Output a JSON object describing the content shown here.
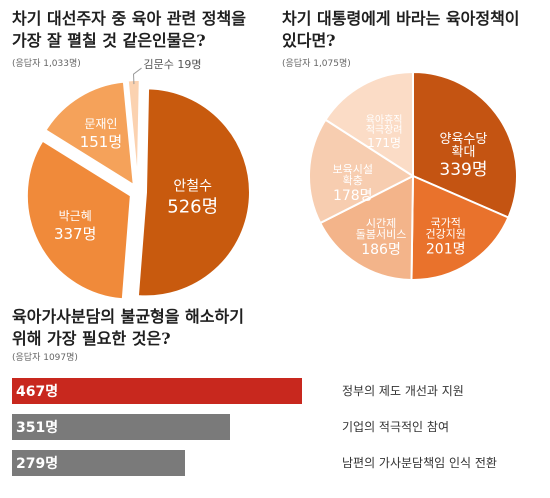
{
  "colors": {
    "q1_dark": "#c85a0e",
    "q1_mid": "#f08a3a",
    "q1_light": "#f5a25a",
    "q1_pale": "#fbd2b0",
    "q2_dark": "#c45412",
    "q2_mid": "#e9722c",
    "q2_light": "#f3b48a",
    "q2_pale": "#f7cdb0",
    "q2_palest": "#fbdcc6",
    "bar_red": "#c8281e",
    "bar_gray": "#7a7a7a"
  },
  "q1": {
    "title_line1": "차기 대선주자 중 육아 관련 정책을",
    "title_line2": "가장 잘 펼칠 것 같은인물은?",
    "sub": "(응답자 1,033명)"
  },
  "q2": {
    "title_line1": "차기 대통령에게 바라는 육아정책이",
    "title_line2": "있다면?",
    "sub": "(응답자 1,075명)"
  },
  "q3": {
    "title_line1": "육아가사분담의 불균형을 해소하기",
    "title_line2": "위해 가장 필요한 것은?",
    "sub": "(응답자 1097명)"
  },
  "chart_data": [
    {
      "type": "pie",
      "title": "차기 대선주자 중 육아 관련 정책을 가장 잘 펼칠 것 같은인물은?",
      "labels": [
        "안철수",
        "박근혜",
        "문재인",
        "김문수"
      ],
      "values": [
        526,
        337,
        151,
        19
      ],
      "value_labels": [
        "526명",
        "337명",
        "151명",
        "19명"
      ],
      "colors": [
        "#c85a0e",
        "#f08a3a",
        "#f5a25a",
        "#fbd2b0"
      ]
    },
    {
      "type": "pie",
      "title": "차기 대통령에게 바라는 육아정책이 있다면?",
      "labels": [
        "양육수당 확대",
        "국가적 건강지원",
        "시간제 돌봄서비스",
        "보육시설 확충",
        "육아휴직 적극장려"
      ],
      "label_lines": [
        [
          "양육수당",
          "확대"
        ],
        [
          "국가적",
          "건강지원"
        ],
        [
          "시간제",
          "돌봄서비스"
        ],
        [
          "보육시설",
          "확충"
        ],
        [
          "육아휴직",
          "적극장려"
        ]
      ],
      "values": [
        339,
        201,
        186,
        178,
        171
      ],
      "value_labels": [
        "339명",
        "201명",
        "186명",
        "178명",
        "171명"
      ],
      "colors": [
        "#c45412",
        "#e9722c",
        "#f3b48a",
        "#f7cdb0",
        "#fbdcc6"
      ]
    },
    {
      "type": "bar",
      "title": "육아가사분담의 불균형을 해소하기 위해 가장 필요한 것은?",
      "categories": [
        "정부의 제도 개선과 지원",
        "기업의 적극적인 참여",
        "남편의 가사분담책임 인식 전환"
      ],
      "values": [
        467,
        351,
        279
      ],
      "value_labels": [
        "467명",
        "351명",
        "279명"
      ],
      "colors": [
        "#c8281e",
        "#7a7a7a",
        "#7a7a7a"
      ]
    }
  ]
}
